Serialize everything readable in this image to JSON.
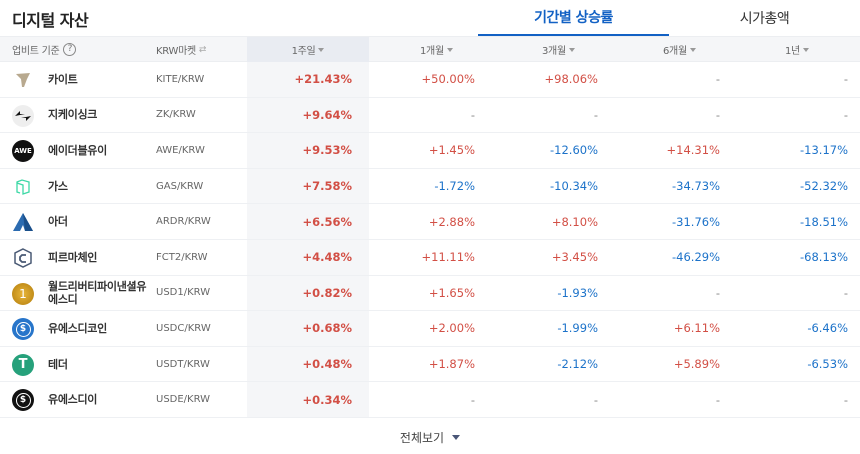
{
  "header": {
    "title": "디지털 자산",
    "tabs": [
      {
        "label": "기간별 상승률",
        "active": true
      },
      {
        "label": "시가총액",
        "active": false
      }
    ]
  },
  "table": {
    "columns": {
      "basis": "업비트 기준",
      "basis_help": "?",
      "market": "KRW마켓",
      "w1": "1주일",
      "m1": "1개월",
      "m3": "3개월",
      "m6": "6개월",
      "y1": "1년"
    },
    "rows": [
      {
        "name": "카이트",
        "market": "KITE/KRW",
        "icon": "kite-icon",
        "w1": "+21.43%",
        "m1": "+50.00%",
        "m3": "+98.06%",
        "m6": "-",
        "y1": "-"
      },
      {
        "name": "지케이싱크",
        "market": "ZK/KRW",
        "icon": "zksync-icon",
        "w1": "+9.64%",
        "m1": "-",
        "m3": "-",
        "m6": "-",
        "y1": "-"
      },
      {
        "name": "에이더블유이",
        "market": "AWE/KRW",
        "icon": "awe-icon",
        "w1": "+9.53%",
        "m1": "+1.45%",
        "m3": "-12.60%",
        "m6": "+14.31%",
        "y1": "-13.17%"
      },
      {
        "name": "가스",
        "market": "GAS/KRW",
        "icon": "gas-icon",
        "w1": "+7.58%",
        "m1": "-1.72%",
        "m3": "-10.34%",
        "m6": "-34.73%",
        "y1": "-52.32%"
      },
      {
        "name": "아더",
        "market": "ARDR/KRW",
        "icon": "ardor-icon",
        "w1": "+6.56%",
        "m1": "+2.88%",
        "m3": "+8.10%",
        "m6": "-31.76%",
        "y1": "-18.51%"
      },
      {
        "name": "피르마체인",
        "market": "FCT2/KRW",
        "icon": "firmachain-icon",
        "w1": "+4.48%",
        "m1": "+11.11%",
        "m3": "+3.45%",
        "m6": "-46.29%",
        "y1": "-68.13%"
      },
      {
        "name": "월드리버티파이낸셜유에스디",
        "market": "USD1/KRW",
        "icon": "usd1-icon",
        "w1": "+0.82%",
        "m1": "+1.65%",
        "m3": "-1.93%",
        "m6": "-",
        "y1": "-"
      },
      {
        "name": "유에스디코인",
        "market": "USDC/KRW",
        "icon": "usdc-icon",
        "w1": "+0.68%",
        "m1": "+2.00%",
        "m3": "-1.99%",
        "m6": "+6.11%",
        "y1": "-6.46%"
      },
      {
        "name": "테더",
        "market": "USDT/KRW",
        "icon": "tether-icon",
        "w1": "+0.48%",
        "m1": "+1.87%",
        "m3": "-2.12%",
        "m6": "+5.89%",
        "y1": "-6.53%"
      },
      {
        "name": "유에스디이",
        "market": "USDE/KRW",
        "icon": "usde-icon",
        "w1": "+0.34%",
        "m1": "-",
        "m3": "-",
        "m6": "-",
        "y1": "-"
      }
    ]
  },
  "footer": {
    "view_all": "전체보기"
  },
  "colors": {
    "accent": "#1261c4",
    "positive": "#d24f45",
    "negative": "#1c72c9"
  }
}
